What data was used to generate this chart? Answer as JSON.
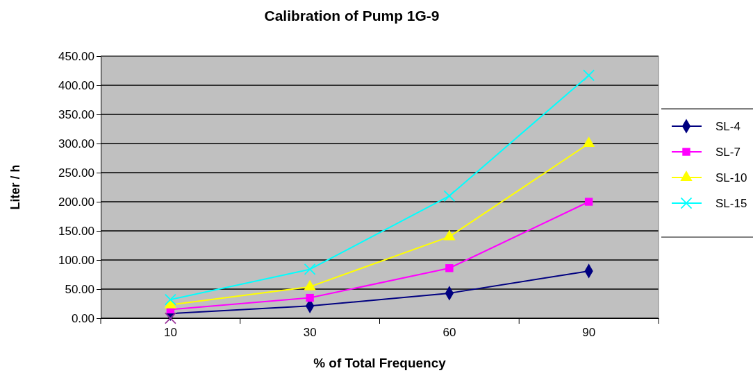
{
  "chart_data": {
    "type": "line",
    "title": "Calibration of Pump 1G-9",
    "xlabel": "%  of Total Frequency",
    "ylabel": "Liter / h",
    "categories": [
      "10",
      "30",
      "60",
      "90"
    ],
    "series": [
      {
        "name": "SL-4",
        "color": "#000080",
        "marker": "diamond",
        "values": [
          8,
          21,
          43,
          81
        ]
      },
      {
        "name": "SL-7",
        "color": "#ff00ff",
        "marker": "square",
        "values": [
          15,
          35,
          86,
          200
        ]
      },
      {
        "name": "SL-10",
        "color": "#ffff00",
        "marker": "triangle",
        "values": [
          23,
          54,
          140,
          300
        ]
      },
      {
        "name": "SL-15",
        "color": "#00ffff",
        "marker": "cross",
        "values": [
          32,
          84,
          210,
          417
        ]
      },
      {
        "type": "scatter",
        "color": "#993399",
        "marker": "cross",
        "values": [
          0,
          null,
          null,
          null
        ]
      }
    ],
    "ylim": [
      0,
      450
    ],
    "yticks": [
      {
        "value": 0,
        "label": "0.00"
      },
      {
        "value": 50,
        "label": "50.00"
      },
      {
        "value": 100,
        "label": "100.00"
      },
      {
        "value": 150,
        "label": "150.00"
      },
      {
        "value": 200,
        "label": "200.00"
      },
      {
        "value": 250,
        "label": "250.00"
      },
      {
        "value": 300,
        "label": "300.00"
      },
      {
        "value": 350,
        "label": "350.00"
      },
      {
        "value": 400,
        "label": "400.00"
      },
      {
        "value": 450,
        "label": "450.00"
      }
    ],
    "grid": "y",
    "legend": "right"
  }
}
